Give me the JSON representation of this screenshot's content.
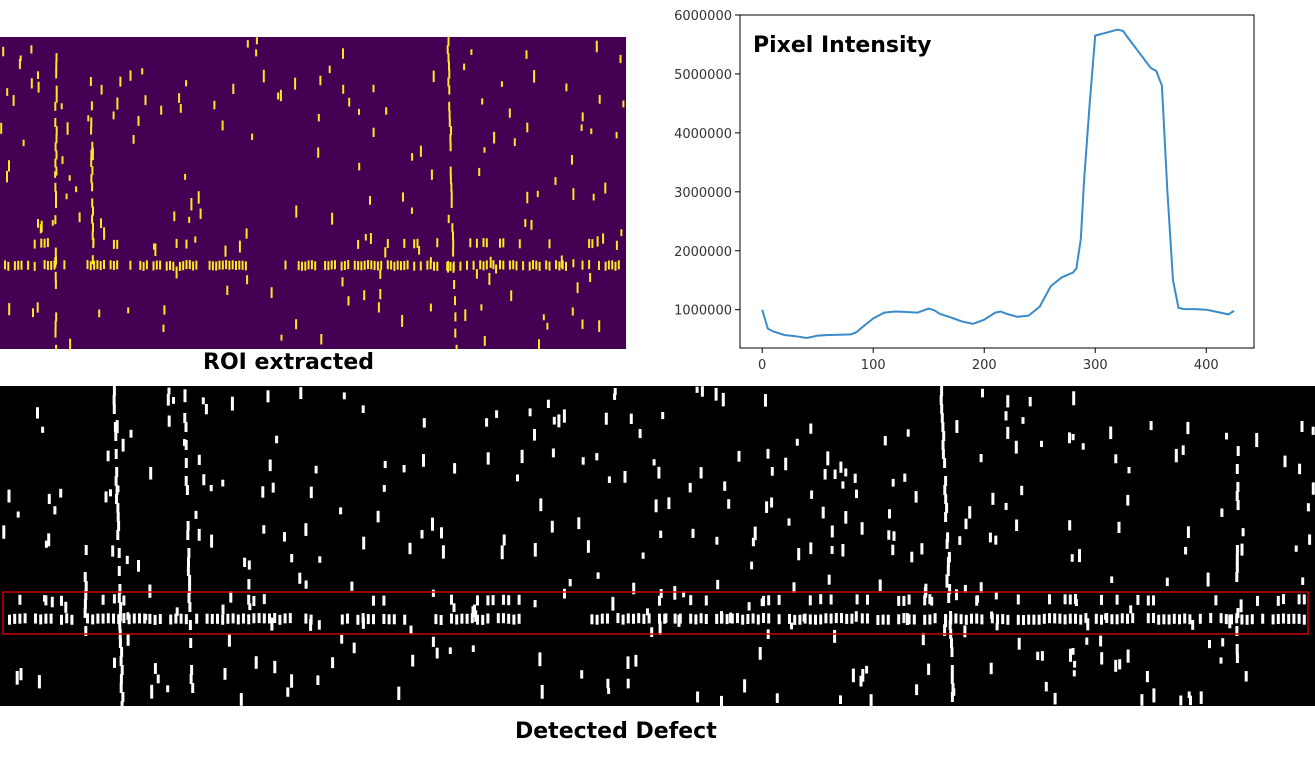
{
  "captions": {
    "roi": "ROI extracted",
    "defect": "Detected Defect"
  },
  "colors": {
    "roi_background": "#440154",
    "roi_marks": "#fde725",
    "defect_background": "#000000",
    "defect_marks": "#ffffff",
    "defect_box": "#cc0000",
    "line": "#3b8bc8"
  },
  "chart_data": {
    "type": "line",
    "title": "Pixel Intensity",
    "xlabel": "",
    "ylabel": "",
    "xlim": [
      -20,
      443
    ],
    "ylim": [
      350000,
      6000000
    ],
    "xticks": [
      0,
      100,
      200,
      300,
      400
    ],
    "yticks": [
      1000000,
      2000000,
      3000000,
      4000000,
      5000000,
      6000000
    ],
    "grid": false,
    "x": [
      0,
      5,
      10,
      20,
      30,
      40,
      50,
      60,
      70,
      80,
      85,
      90,
      100,
      110,
      120,
      130,
      140,
      150,
      155,
      160,
      170,
      180,
      190,
      200,
      210,
      215,
      220,
      230,
      240,
      250,
      260,
      270,
      280,
      283,
      287,
      290,
      295,
      300,
      310,
      320,
      325,
      330,
      340,
      350,
      355,
      360,
      365,
      370,
      375,
      380,
      390,
      400,
      410,
      420,
      425
    ],
    "y": [
      1000000,
      680000,
      630000,
      570000,
      550000,
      520000,
      560000,
      570000,
      575000,
      580000,
      620000,
      700000,
      850000,
      950000,
      970000,
      960000,
      950000,
      1020000,
      990000,
      930000,
      870000,
      800000,
      760000,
      830000,
      950000,
      970000,
      930000,
      880000,
      900000,
      1050000,
      1400000,
      1550000,
      1630000,
      1700000,
      2200000,
      3200000,
      4500000,
      5650000,
      5700000,
      5750000,
      5730000,
      5600000,
      5350000,
      5100000,
      5050000,
      4800000,
      3000000,
      1500000,
      1030000,
      1010000,
      1010000,
      1000000,
      960000,
      920000,
      980000
    ]
  }
}
